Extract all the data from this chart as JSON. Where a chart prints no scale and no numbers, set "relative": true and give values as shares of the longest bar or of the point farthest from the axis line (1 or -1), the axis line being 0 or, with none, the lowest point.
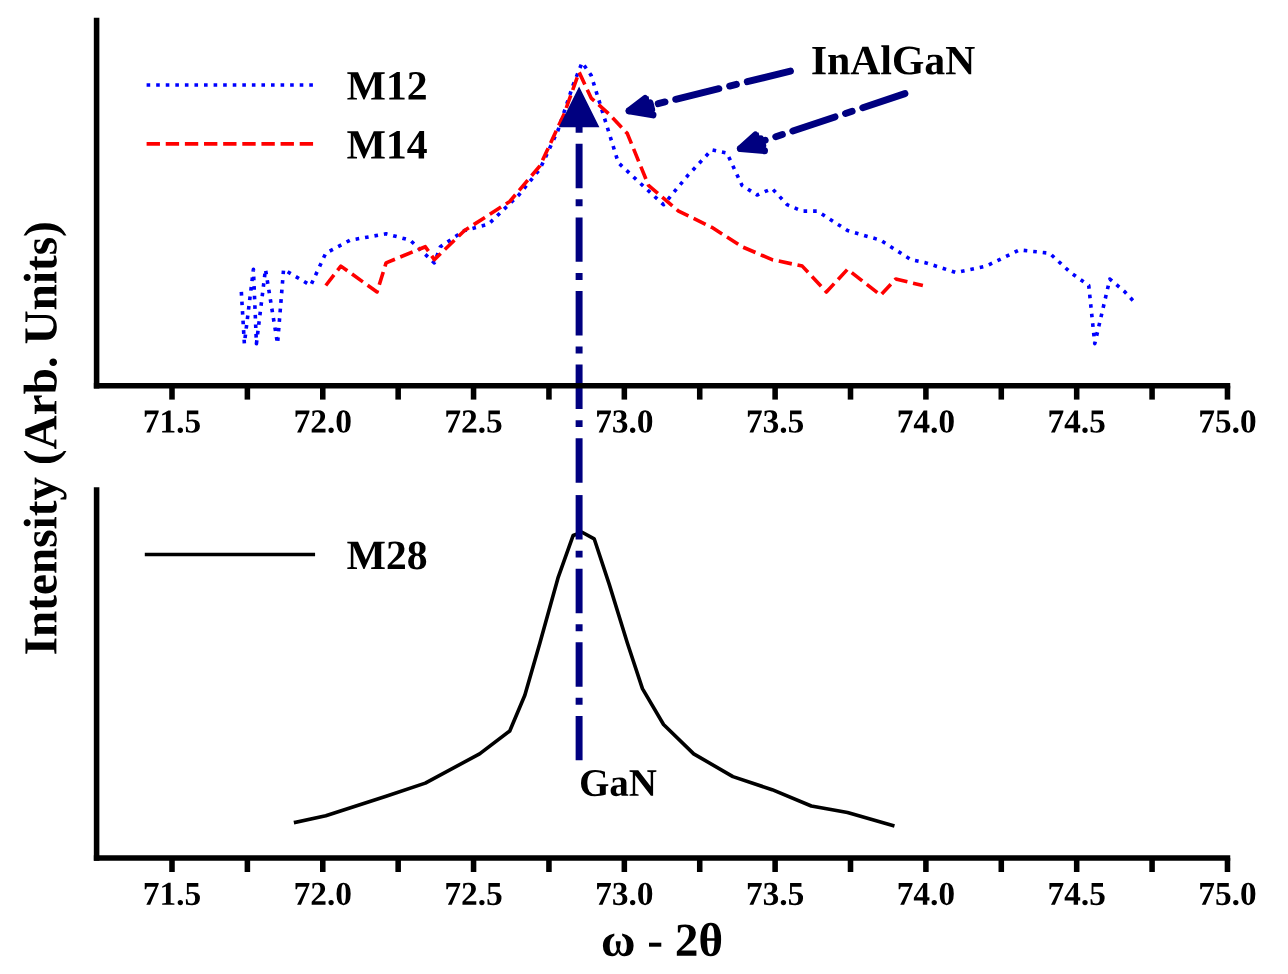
{
  "chart_data": [
    {
      "type": "line",
      "relative": true,
      "ylabel": "Intensity (Arb. Units)",
      "xlim": [
        71.25,
        75.0
      ],
      "xticks": [
        {
          "value": 71.5,
          "label": "71.5"
        },
        {
          "value": 71.75,
          "label": null
        },
        {
          "value": 72.0,
          "label": "72.0"
        },
        {
          "value": 72.25,
          "label": null
        },
        {
          "value": 72.5,
          "label": "72.5"
        },
        {
          "value": 72.75,
          "label": null
        },
        {
          "value": 73.0,
          "label": "73.0"
        },
        {
          "value": 73.25,
          "label": null
        },
        {
          "value": 73.5,
          "label": "73.5"
        },
        {
          "value": 73.75,
          "label": null
        },
        {
          "value": 74.0,
          "label": "74.0"
        },
        {
          "value": 74.25,
          "label": null
        },
        {
          "value": 74.5,
          "label": "74.5"
        },
        {
          "value": 74.75,
          "label": null
        },
        {
          "value": 75.0,
          "label": "75.0"
        }
      ],
      "legend": "top left",
      "grid": false,
      "marker": "none",
      "series": [
        {
          "name": "M12",
          "color": "#0000ff",
          "line_style": "dotted",
          "x": [
            71.73,
            71.74,
            71.77,
            71.78,
            71.81,
            71.85,
            71.87,
            71.96,
            72.01,
            72.09,
            72.21,
            72.29,
            72.37,
            72.39,
            72.47,
            72.55,
            72.65,
            72.72,
            72.78,
            72.83,
            72.86,
            72.89,
            72.93,
            72.98,
            73.06,
            73.13,
            73.21,
            73.29,
            73.34,
            73.39,
            73.44,
            73.49,
            73.54,
            73.59,
            73.64,
            73.74,
            73.85,
            73.95,
            74.0,
            74.1,
            74.2,
            74.31,
            74.41,
            74.48,
            74.54,
            74.56,
            74.61,
            74.66,
            74.69
          ],
          "values": [
            0.29,
            0.13,
            0.36,
            0.13,
            0.36,
            0.13,
            0.36,
            0.31,
            0.41,
            0.45,
            0.47,
            0.45,
            0.38,
            0.43,
            0.48,
            0.5,
            0.59,
            0.67,
            0.79,
            0.93,
            1,
            0.96,
            0.84,
            0.69,
            0.62,
            0.56,
            0.65,
            0.73,
            0.72,
            0.62,
            0.59,
            0.61,
            0.56,
            0.54,
            0.54,
            0.48,
            0.45,
            0.39,
            0.38,
            0.35,
            0.37,
            0.42,
            0.41,
            0.35,
            0.31,
            0.13,
            0.33,
            0.29,
            0.26
          ]
        },
        {
          "name": "M14",
          "color": "#ff0000",
          "line_style": "dashed",
          "x": [
            72.01,
            72.06,
            72.18,
            72.21,
            72.34,
            72.37,
            72.47,
            72.62,
            72.72,
            72.8,
            72.85,
            72.89,
            72.95,
            73.01,
            73.08,
            73.18,
            73.29,
            73.39,
            73.49,
            73.59,
            73.67,
            73.74,
            73.85,
            73.9,
            73.99
          ],
          "values": [
            0.31,
            0.37,
            0.29,
            0.38,
            0.43,
            0.39,
            0.48,
            0.57,
            0.68,
            0.84,
            0.97,
            0.89,
            0.84,
            0.78,
            0.62,
            0.54,
            0.49,
            0.43,
            0.39,
            0.37,
            0.29,
            0.36,
            0.28,
            0.33,
            0.31
          ]
        }
      ],
      "annotations": [
        {
          "text": "InAlGaN",
          "x": 72.97,
          "y": 0.84
        }
      ],
      "ref_lines": [
        {
          "axis": "x",
          "value": 72.85,
          "color": "#000080",
          "line_style": "dashdot"
        }
      ]
    },
    {
      "type": "line",
      "relative": true,
      "xlabel": "ω - 2θ",
      "xlim": [
        71.25,
        75.0
      ],
      "xticks": [
        {
          "value": 71.5,
          "label": "71.5"
        },
        {
          "value": 71.75,
          "label": null
        },
        {
          "value": 72.0,
          "label": "72.0"
        },
        {
          "value": 72.25,
          "label": null
        },
        {
          "value": 72.5,
          "label": "72.5"
        },
        {
          "value": 72.75,
          "label": null
        },
        {
          "value": 73.0,
          "label": "73.0"
        },
        {
          "value": 73.25,
          "label": null
        },
        {
          "value": 73.5,
          "label": "73.5"
        },
        {
          "value": 73.75,
          "label": null
        },
        {
          "value": 74.0,
          "label": "74.0"
        },
        {
          "value": 74.25,
          "label": null
        },
        {
          "value": 74.5,
          "label": "74.5"
        },
        {
          "value": 74.75,
          "label": null
        },
        {
          "value": 75.0,
          "label": "75.0"
        }
      ],
      "legend": "top left",
      "grid": false,
      "marker": "none",
      "series": [
        {
          "name": "M28",
          "color": "#000000",
          "line_style": "solid",
          "x": [
            71.91,
            72.01,
            72.21,
            72.34,
            72.52,
            72.62,
            72.67,
            72.72,
            72.78,
            72.83,
            72.86,
            72.9,
            72.95,
            73.01,
            73.06,
            73.13,
            73.23,
            73.36,
            73.49,
            73.62,
            73.74,
            73.89
          ],
          "values": [
            0.11,
            0.13,
            0.19,
            0.23,
            0.32,
            0.39,
            0.5,
            0.66,
            0.86,
            0.99,
            1,
            0.98,
            0.84,
            0.66,
            0.52,
            0.41,
            0.32,
            0.25,
            0.21,
            0.16,
            0.14,
            0.1
          ]
        }
      ],
      "ref_lines": [
        {
          "axis": "x",
          "value": 72.85,
          "label": "GaN",
          "color": "#000080",
          "line_style": "dashdot"
        }
      ]
    }
  ]
}
